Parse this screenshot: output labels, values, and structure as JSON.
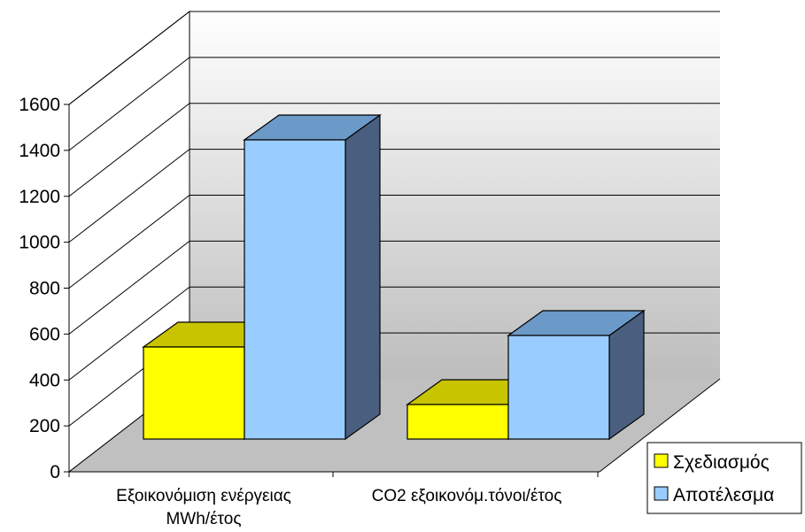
{
  "chart_data": {
    "type": "bar",
    "three_d": true,
    "categories": [
      "Εξοικονόμιση ενέργειας MWh/έτος",
      "CO2 εξοικονόμ.τόνοι/έτος"
    ],
    "category_lines": [
      [
        "Εξοικονόμιση ενέργειας",
        "MWh/έτος"
      ],
      [
        "CO2 εξοικονόμ.τόνοι/έτος"
      ]
    ],
    "series": [
      {
        "name": "Σχεδιασμός",
        "values": [
          400,
          150
        ],
        "color": "#ffff00",
        "top_color": "#c8c400",
        "side_color": "#8a8a00"
      },
      {
        "name": "Αποτέλεσμα",
        "values": [
          1300,
          450
        ],
        "color": "#99ccff",
        "top_color": "#6c9ac8",
        "side_color": "#4a5f80"
      }
    ],
    "yticks": [
      0,
      200,
      400,
      600,
      800,
      1000,
      1200,
      1400,
      1600
    ],
    "ylim": [
      0,
      1600
    ],
    "grid": true,
    "legend": "right"
  }
}
